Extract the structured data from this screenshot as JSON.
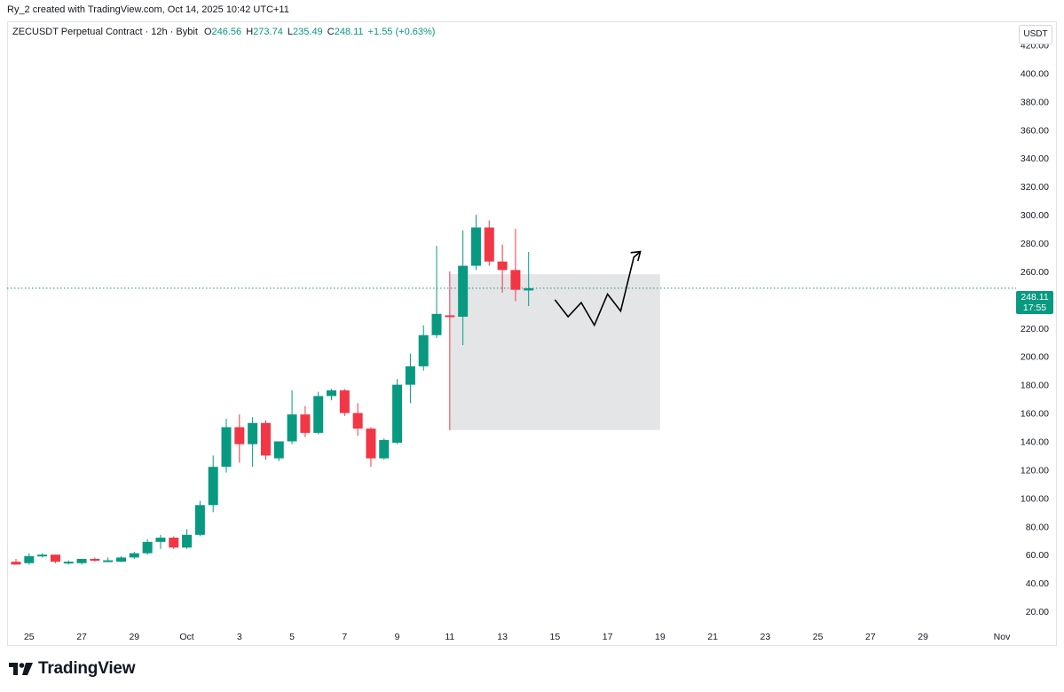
{
  "header": {
    "credit": "Ry_2 created with TradingView.com, Oct 14, 2025 10:42 UTC+11"
  },
  "legend": {
    "symbol": "ZECUSDT Perpetual Contract · 12h · Bybit",
    "o_label": "O",
    "o_value": "246.56",
    "h_label": "H",
    "h_value": "273.74",
    "l_label": "L",
    "l_value": "235.49",
    "c_label": "C",
    "c_value": "248.11",
    "change": "+1.55 (+0.63%)"
  },
  "currency_button": "USDT",
  "price_tag": {
    "price": "248.11",
    "countdown": "17:55"
  },
  "brand": {
    "name": "TradingView"
  },
  "colors": {
    "up": "#089981",
    "down": "#f23645",
    "zone_fill": "#e1e2e4",
    "current_line": "#089981"
  },
  "icons": [
    "tradingview-logo-icon",
    "arrow-up-icon"
  ],
  "chart_data": {
    "type": "candlestick",
    "interval": "12h",
    "y_axis": {
      "range": [
        10,
        436
      ],
      "ticks": [
        20,
        40,
        60,
        80,
        100,
        120,
        140,
        160,
        180,
        200,
        220,
        260,
        280,
        300,
        320,
        340,
        360,
        380,
        400,
        420
      ],
      "tick_labels": [
        "20.00",
        "40.00",
        "60.00",
        "80.00",
        "100.00",
        "120.00",
        "140.00",
        "160.00",
        "180.00",
        "200.00",
        "220.00",
        "260.00",
        "280.00",
        "300.00",
        "320.00",
        "340.00",
        "360.00",
        "380.00",
        "400.00",
        "420.00"
      ]
    },
    "x_axis": {
      "start": "2025-09-24T12:00",
      "end": "2025-11-01T00:00",
      "ticks": [
        {
          "date": "2025-09-25",
          "label": "25"
        },
        {
          "date": "2025-09-27",
          "label": "27"
        },
        {
          "date": "2025-09-29",
          "label": "29"
        },
        {
          "date": "2025-10-01",
          "label": "Oct"
        },
        {
          "date": "2025-10-03",
          "label": "3"
        },
        {
          "date": "2025-10-05",
          "label": "5"
        },
        {
          "date": "2025-10-07",
          "label": "7"
        },
        {
          "date": "2025-10-09",
          "label": "9"
        },
        {
          "date": "2025-10-11",
          "label": "11"
        },
        {
          "date": "2025-10-13",
          "label": "13"
        },
        {
          "date": "2025-10-15",
          "label": "15"
        },
        {
          "date": "2025-10-17",
          "label": "17"
        },
        {
          "date": "2025-10-19",
          "label": "19"
        },
        {
          "date": "2025-10-21",
          "label": "21"
        },
        {
          "date": "2025-10-23",
          "label": "23"
        },
        {
          "date": "2025-10-25",
          "label": "25"
        },
        {
          "date": "2025-10-27",
          "label": "27"
        },
        {
          "date": "2025-10-29",
          "label": "29"
        },
        {
          "date": "2025-11-01",
          "label": "Nov"
        }
      ]
    },
    "current_price": 248.11,
    "candles": [
      {
        "t": "2025-09-24T12:00",
        "o": 55,
        "h": 57,
        "l": 53,
        "c": 53
      },
      {
        "t": "2025-09-25T00:00",
        "o": 54,
        "h": 61,
        "l": 53,
        "c": 59
      },
      {
        "t": "2025-09-25T12:00",
        "o": 59,
        "h": 61,
        "l": 58,
        "c": 60
      },
      {
        "t": "2025-09-26T00:00",
        "o": 60,
        "h": 60,
        "l": 54,
        "c": 55
      },
      {
        "t": "2025-09-26T12:00",
        "o": 54,
        "h": 56,
        "l": 53,
        "c": 55
      },
      {
        "t": "2025-09-27T00:00",
        "o": 54,
        "h": 57,
        "l": 53,
        "c": 57
      },
      {
        "t": "2025-09-27T12:00",
        "o": 57,
        "h": 58,
        "l": 55,
        "c": 56
      },
      {
        "t": "2025-09-28T00:00",
        "o": 56,
        "h": 58,
        "l": 55,
        "c": 56
      },
      {
        "t": "2025-09-28T12:00",
        "o": 55,
        "h": 59,
        "l": 55,
        "c": 58
      },
      {
        "t": "2025-09-29T00:00",
        "o": 58,
        "h": 62,
        "l": 57,
        "c": 61
      },
      {
        "t": "2025-09-29T12:00",
        "o": 61,
        "h": 71,
        "l": 60,
        "c": 69
      },
      {
        "t": "2025-09-30T00:00",
        "o": 69,
        "h": 74,
        "l": 64,
        "c": 72
      },
      {
        "t": "2025-09-30T12:00",
        "o": 72,
        "h": 73,
        "l": 64,
        "c": 65
      },
      {
        "t": "2025-10-01T00:00",
        "o": 65,
        "h": 78,
        "l": 64,
        "c": 74
      },
      {
        "t": "2025-10-01T12:00",
        "o": 74,
        "h": 98,
        "l": 73,
        "c": 95
      },
      {
        "t": "2025-10-02T00:00",
        "o": 95,
        "h": 130,
        "l": 90,
        "c": 122
      },
      {
        "t": "2025-10-02T12:00",
        "o": 122,
        "h": 156,
        "l": 118,
        "c": 150
      },
      {
        "t": "2025-10-03T00:00",
        "o": 150,
        "h": 159,
        "l": 125,
        "c": 138
      },
      {
        "t": "2025-10-03T12:00",
        "o": 138,
        "h": 157,
        "l": 122,
        "c": 153
      },
      {
        "t": "2025-10-04T00:00",
        "o": 153,
        "h": 155,
        "l": 127,
        "c": 130
      },
      {
        "t": "2025-10-04T12:00",
        "o": 128,
        "h": 140,
        "l": 126,
        "c": 140
      },
      {
        "t": "2025-10-05T00:00",
        "o": 140,
        "h": 176,
        "l": 138,
        "c": 159
      },
      {
        "t": "2025-10-05T12:00",
        "o": 159,
        "h": 165,
        "l": 143,
        "c": 146
      },
      {
        "t": "2025-10-06T00:00",
        "o": 146,
        "h": 175,
        "l": 145,
        "c": 172
      },
      {
        "t": "2025-10-06T12:00",
        "o": 172,
        "h": 177,
        "l": 169,
        "c": 176
      },
      {
        "t": "2025-10-07T00:00",
        "o": 176,
        "h": 177,
        "l": 158,
        "c": 160
      },
      {
        "t": "2025-10-07T12:00",
        "o": 160,
        "h": 167,
        "l": 144,
        "c": 149
      },
      {
        "t": "2025-10-08T00:00",
        "o": 149,
        "h": 150,
        "l": 122,
        "c": 128
      },
      {
        "t": "2025-10-08T12:00",
        "o": 128,
        "h": 142,
        "l": 127,
        "c": 141
      },
      {
        "t": "2025-10-09T00:00",
        "o": 139,
        "h": 184,
        "l": 138,
        "c": 180
      },
      {
        "t": "2025-10-09T12:00",
        "o": 180,
        "h": 202,
        "l": 167,
        "c": 193
      },
      {
        "t": "2025-10-10T00:00",
        "o": 193,
        "h": 222,
        "l": 190,
        "c": 215
      },
      {
        "t": "2025-10-10T12:00",
        "o": 215,
        "h": 278,
        "l": 213,
        "c": 230
      },
      {
        "t": "2025-10-11T00:00",
        "o": 229,
        "h": 260,
        "l": 148,
        "c": 228
      },
      {
        "t": "2025-10-11T12:00",
        "o": 228,
        "h": 289,
        "l": 208,
        "c": 264
      },
      {
        "t": "2025-10-12T00:00",
        "o": 264,
        "h": 300,
        "l": 261,
        "c": 291
      },
      {
        "t": "2025-10-12T12:00",
        "o": 291,
        "h": 296,
        "l": 264,
        "c": 267
      },
      {
        "t": "2025-10-13T00:00",
        "o": 267,
        "h": 279,
        "l": 245,
        "c": 261
      },
      {
        "t": "2025-10-13T12:00",
        "o": 261,
        "h": 290,
        "l": 239,
        "c": 247
      },
      {
        "t": "2025-10-14T00:00",
        "o": 246.56,
        "h": 273.74,
        "l": 235.49,
        "c": 248.11
      }
    ],
    "zone": {
      "start": "2025-10-11T00:00",
      "end": "2025-10-19T00:00",
      "top": 258,
      "bottom": 148
    },
    "projection_path": [
      {
        "t": "2025-10-15T00:00",
        "p": 240
      },
      {
        "t": "2025-10-15T12:00",
        "p": 228
      },
      {
        "t": "2025-10-16T00:00",
        "p": 238
      },
      {
        "t": "2025-10-16T12:00",
        "p": 222
      },
      {
        "t": "2025-10-17T00:00",
        "p": 244
      },
      {
        "t": "2025-10-17T12:00",
        "p": 232
      },
      {
        "t": "2025-10-18T00:00",
        "p": 270
      },
      {
        "t": "2025-10-18T06:00",
        "p": 274
      }
    ]
  }
}
